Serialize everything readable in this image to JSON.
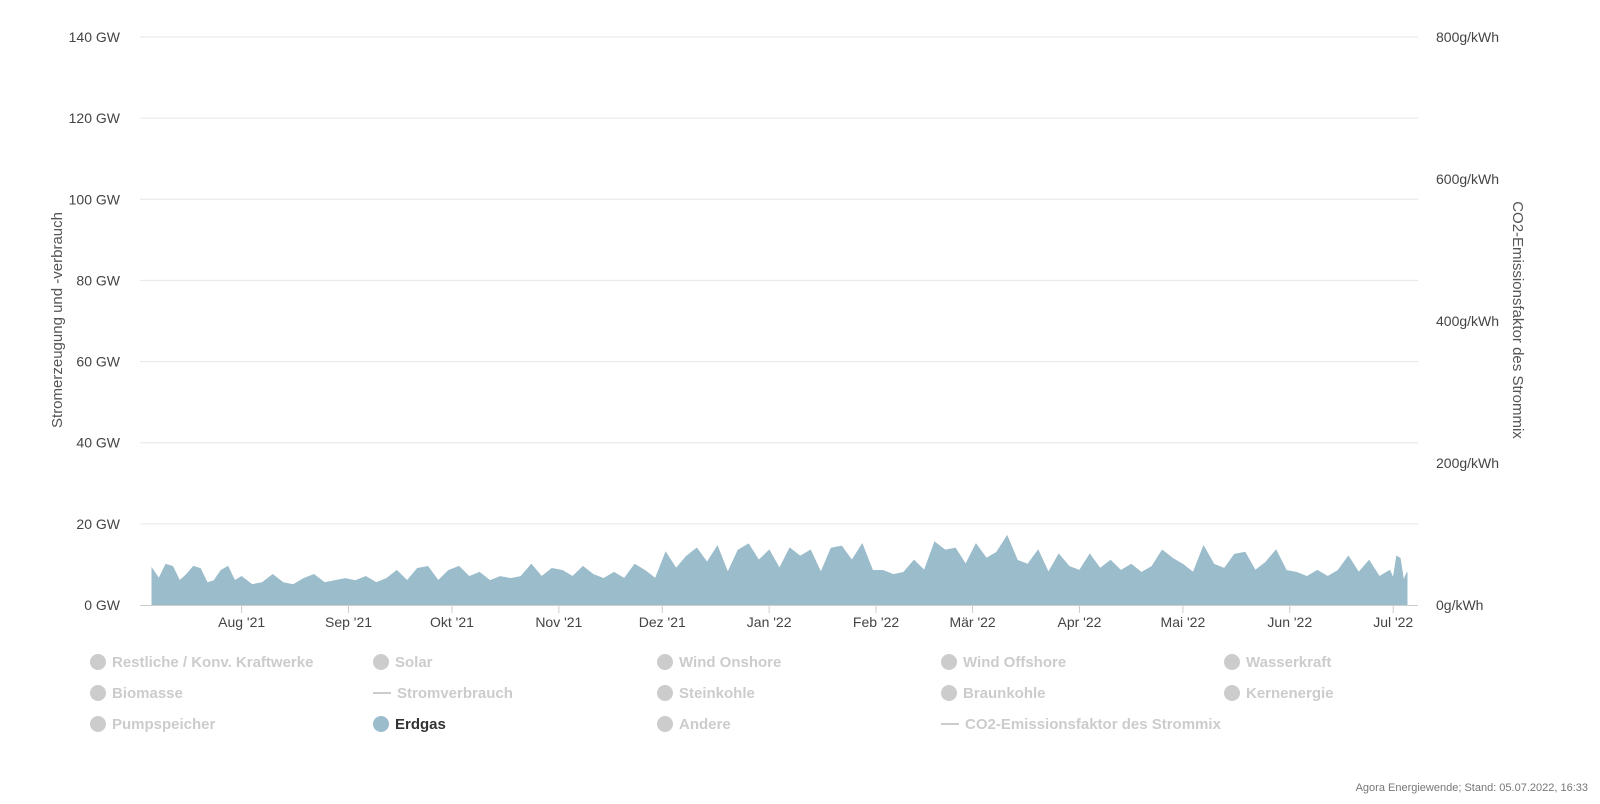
{
  "chart_data": {
    "type": "area",
    "title": "",
    "ylabel_left": "Stromerzeugung und -verbrauch",
    "ylabel_right": "CO2-Emissionsfaktor des Strommix",
    "ylim_left": [
      0,
      140
    ],
    "ylim_right": [
      0,
      800
    ],
    "left_ticks": [
      "0 GW",
      "20 GW",
      "40 GW",
      "60 GW",
      "80 GW",
      "100 GW",
      "120 GW",
      "140 GW"
    ],
    "left_tick_values": [
      0,
      20,
      40,
      60,
      80,
      100,
      120,
      140
    ],
    "right_ticks": [
      "0g/kWh",
      "200g/kWh",
      "400g/kWh",
      "600g/kWh",
      "800g/kWh"
    ],
    "right_tick_values": [
      0,
      200,
      400,
      600,
      800
    ],
    "x_start": "2021-07-06",
    "x_end": "2022-07-05",
    "x_ticks": [
      {
        "label": "Aug '21",
        "date": "2021-08-01"
      },
      {
        "label": "Sep '21",
        "date": "2021-09-01"
      },
      {
        "label": "Okt '21",
        "date": "2021-10-01"
      },
      {
        "label": "Nov '21",
        "date": "2021-11-01"
      },
      {
        "label": "Dez '21",
        "date": "2021-12-01"
      },
      {
        "label": "Jan '22",
        "date": "2022-01-01"
      },
      {
        "label": "Feb '22",
        "date": "2022-02-01"
      },
      {
        "label": "Mär '22",
        "date": "2022-03-01"
      },
      {
        "label": "Apr '22",
        "date": "2022-04-01"
      },
      {
        "label": "Mai '22",
        "date": "2022-05-01"
      },
      {
        "label": "Jun '22",
        "date": "2022-06-01"
      },
      {
        "label": "Jul '22",
        "date": "2022-07-01"
      }
    ],
    "grid": true,
    "legend_position": "bottom",
    "series": [
      {
        "name": "Erdgas",
        "color": "#9bbccb",
        "unit": "GW",
        "points": [
          [
            "2021-07-06",
            9.0
          ],
          [
            "2021-07-08",
            6.5
          ],
          [
            "2021-07-10",
            10.0
          ],
          [
            "2021-07-12",
            9.5
          ],
          [
            "2021-07-14",
            6.0
          ],
          [
            "2021-07-16",
            7.5
          ],
          [
            "2021-07-18",
            9.5
          ],
          [
            "2021-07-20",
            9.0
          ],
          [
            "2021-07-22",
            5.5
          ],
          [
            "2021-07-24",
            6.0
          ],
          [
            "2021-07-26",
            8.5
          ],
          [
            "2021-07-28",
            9.5
          ],
          [
            "2021-07-30",
            6.0
          ],
          [
            "2021-08-01",
            7.0
          ],
          [
            "2021-08-04",
            5.0
          ],
          [
            "2021-08-07",
            5.5
          ],
          [
            "2021-08-10",
            7.5
          ],
          [
            "2021-08-13",
            5.5
          ],
          [
            "2021-08-16",
            5.0
          ],
          [
            "2021-08-19",
            6.5
          ],
          [
            "2021-08-22",
            7.5
          ],
          [
            "2021-08-25",
            5.5
          ],
          [
            "2021-08-28",
            6.0
          ],
          [
            "2021-08-31",
            6.5
          ],
          [
            "2021-09-03",
            6.0
          ],
          [
            "2021-09-06",
            7.0
          ],
          [
            "2021-09-09",
            5.5
          ],
          [
            "2021-09-12",
            6.5
          ],
          [
            "2021-09-15",
            8.5
          ],
          [
            "2021-09-18",
            6.0
          ],
          [
            "2021-09-21",
            9.0
          ],
          [
            "2021-09-24",
            9.5
          ],
          [
            "2021-09-27",
            6.0
          ],
          [
            "2021-09-30",
            8.5
          ],
          [
            "2021-10-03",
            9.5
          ],
          [
            "2021-10-06",
            7.0
          ],
          [
            "2021-10-09",
            8.0
          ],
          [
            "2021-10-12",
            6.0
          ],
          [
            "2021-10-15",
            7.0
          ],
          [
            "2021-10-18",
            6.5
          ],
          [
            "2021-10-21",
            7.0
          ],
          [
            "2021-10-24",
            10.0
          ],
          [
            "2021-10-27",
            7.0
          ],
          [
            "2021-10-30",
            9.0
          ],
          [
            "2021-11-02",
            8.5
          ],
          [
            "2021-11-05",
            7.0
          ],
          [
            "2021-11-08",
            9.5
          ],
          [
            "2021-11-11",
            7.5
          ],
          [
            "2021-11-14",
            6.5
          ],
          [
            "2021-11-17",
            8.0
          ],
          [
            "2021-11-20",
            6.5
          ],
          [
            "2021-11-23",
            10.0
          ],
          [
            "2021-11-26",
            8.5
          ],
          [
            "2021-11-29",
            6.5
          ],
          [
            "2021-12-02",
            13.0
          ],
          [
            "2021-12-05",
            9.0
          ],
          [
            "2021-12-08",
            12.0
          ],
          [
            "2021-12-11",
            14.0
          ],
          [
            "2021-12-14",
            10.5
          ],
          [
            "2021-12-17",
            14.5
          ],
          [
            "2021-12-20",
            8.0
          ],
          [
            "2021-12-23",
            13.5
          ],
          [
            "2021-12-26",
            15.0
          ],
          [
            "2021-12-29",
            11.0
          ],
          [
            "2022-01-01",
            13.5
          ],
          [
            "2022-01-04",
            9.0
          ],
          [
            "2022-01-07",
            14.0
          ],
          [
            "2022-01-10",
            12.0
          ],
          [
            "2022-01-13",
            13.5
          ],
          [
            "2022-01-16",
            8.0
          ],
          [
            "2022-01-19",
            14.0
          ],
          [
            "2022-01-22",
            14.5
          ],
          [
            "2022-01-25",
            11.0
          ],
          [
            "2022-01-28",
            15.0
          ],
          [
            "2022-01-31",
            8.5
          ],
          [
            "2022-02-03",
            8.5
          ],
          [
            "2022-02-06",
            7.5
          ],
          [
            "2022-02-09",
            8.0
          ],
          [
            "2022-02-12",
            11.0
          ],
          [
            "2022-02-15",
            8.5
          ],
          [
            "2022-02-18",
            15.5
          ],
          [
            "2022-02-21",
            13.5
          ],
          [
            "2022-02-24",
            14.0
          ],
          [
            "2022-02-27",
            10.0
          ],
          [
            "2022-03-02",
            15.0
          ],
          [
            "2022-03-05",
            11.5
          ],
          [
            "2022-03-08",
            13.0
          ],
          [
            "2022-03-11",
            17.0
          ],
          [
            "2022-03-14",
            11.0
          ],
          [
            "2022-03-17",
            10.0
          ],
          [
            "2022-03-20",
            13.5
          ],
          [
            "2022-03-23",
            8.0
          ],
          [
            "2022-03-26",
            12.5
          ],
          [
            "2022-03-29",
            9.5
          ],
          [
            "2022-04-01",
            8.5
          ],
          [
            "2022-04-04",
            12.5
          ],
          [
            "2022-04-07",
            9.0
          ],
          [
            "2022-04-10",
            11.0
          ],
          [
            "2022-04-13",
            8.5
          ],
          [
            "2022-04-16",
            10.0
          ],
          [
            "2022-04-19",
            8.0
          ],
          [
            "2022-04-22",
            9.5
          ],
          [
            "2022-04-25",
            13.5
          ],
          [
            "2022-04-28",
            11.5
          ],
          [
            "2022-05-01",
            10.0
          ],
          [
            "2022-05-04",
            8.0
          ],
          [
            "2022-05-07",
            14.5
          ],
          [
            "2022-05-10",
            10.0
          ],
          [
            "2022-05-13",
            9.0
          ],
          [
            "2022-05-16",
            12.5
          ],
          [
            "2022-05-19",
            13.0
          ],
          [
            "2022-05-22",
            8.5
          ],
          [
            "2022-05-25",
            10.5
          ],
          [
            "2022-05-28",
            13.5
          ],
          [
            "2022-05-31",
            8.5
          ],
          [
            "2022-06-03",
            8.0
          ],
          [
            "2022-06-06",
            7.0
          ],
          [
            "2022-06-09",
            8.5
          ],
          [
            "2022-06-12",
            7.0
          ],
          [
            "2022-06-15",
            8.5
          ],
          [
            "2022-06-18",
            12.0
          ],
          [
            "2022-06-21",
            8.0
          ],
          [
            "2022-06-24",
            11.0
          ],
          [
            "2022-06-27",
            7.0
          ],
          [
            "2022-06-30",
            8.5
          ],
          [
            "2022-07-01",
            6.5
          ],
          [
            "2022-07-02",
            12.0
          ],
          [
            "2022-07-03",
            11.5
          ],
          [
            "2022-07-04",
            6.0
          ],
          [
            "2022-07-05",
            8.0
          ]
        ]
      }
    ]
  },
  "legend": {
    "items": [
      {
        "label": "Restliche / Konv. Kraftwerke",
        "symbol": "dot",
        "active": false
      },
      {
        "label": "Solar",
        "symbol": "dot",
        "active": false
      },
      {
        "label": "Wind Onshore",
        "symbol": "dot",
        "active": false
      },
      {
        "label": "Wind Offshore",
        "symbol": "dot",
        "active": false
      },
      {
        "label": "Wasserkraft",
        "symbol": "dot",
        "active": false
      },
      {
        "label": "Biomasse",
        "symbol": "dot",
        "active": false
      },
      {
        "label": "Stromverbrauch",
        "symbol": "line",
        "active": false
      },
      {
        "label": "Steinkohle",
        "symbol": "dot",
        "active": false
      },
      {
        "label": "Braunkohle",
        "symbol": "dot",
        "active": false
      },
      {
        "label": "Kernenergie",
        "symbol": "dot",
        "active": false
      },
      {
        "label": "Pumpspeicher",
        "symbol": "dot",
        "active": false
      },
      {
        "label": "Erdgas",
        "symbol": "dot",
        "active": true,
        "color": "#9bbccb"
      },
      {
        "label": "Andere",
        "symbol": "dot",
        "active": false
      },
      {
        "label": "CO2-Emissionsfaktor des Strommix",
        "symbol": "line",
        "active": false
      }
    ],
    "inactive_color": "#cccccc"
  },
  "credits": "Agora Energiewende; Stand: 05.07.2022, 16:33"
}
